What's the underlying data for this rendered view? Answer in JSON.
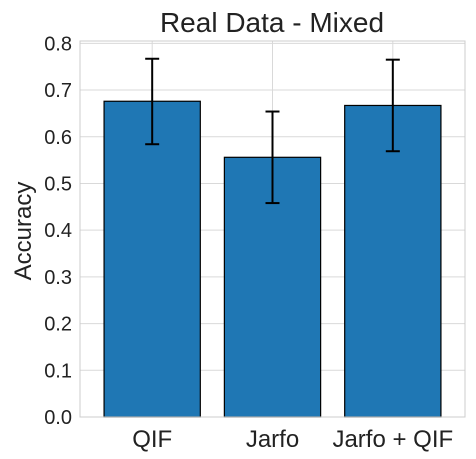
{
  "chart_data": {
    "type": "bar",
    "title": "Real Data - Mixed",
    "xlabel": "",
    "ylabel": "Accuracy",
    "categories": [
      "QIF",
      "Jarfo",
      "Jarfo + QIF"
    ],
    "values": [
      0.676,
      0.556,
      0.667
    ],
    "error_low": [
      0.584,
      0.458,
      0.569
    ],
    "error_high": [
      0.767,
      0.654,
      0.765
    ],
    "ylim": [
      0,
      0.805
    ],
    "yticks": [
      "0.0",
      "0.1",
      "0.2",
      "0.3",
      "0.4",
      "0.5",
      "0.6",
      "0.7",
      "0.8"
    ],
    "grid": true,
    "bar_color": "#1f77b4",
    "edge_color": "#000000"
  }
}
